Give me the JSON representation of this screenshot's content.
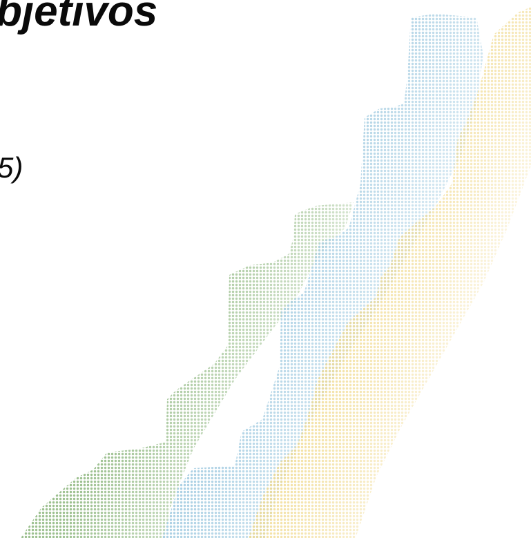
{
  "slide": {
    "heading": "bjetivos",
    "subheading": "5)"
  },
  "decoration": {
    "name": "halftone-steps",
    "colors": {
      "green": "#9cc08f",
      "blue": "#a9cfe3",
      "yellow": "#f0d98c"
    }
  }
}
